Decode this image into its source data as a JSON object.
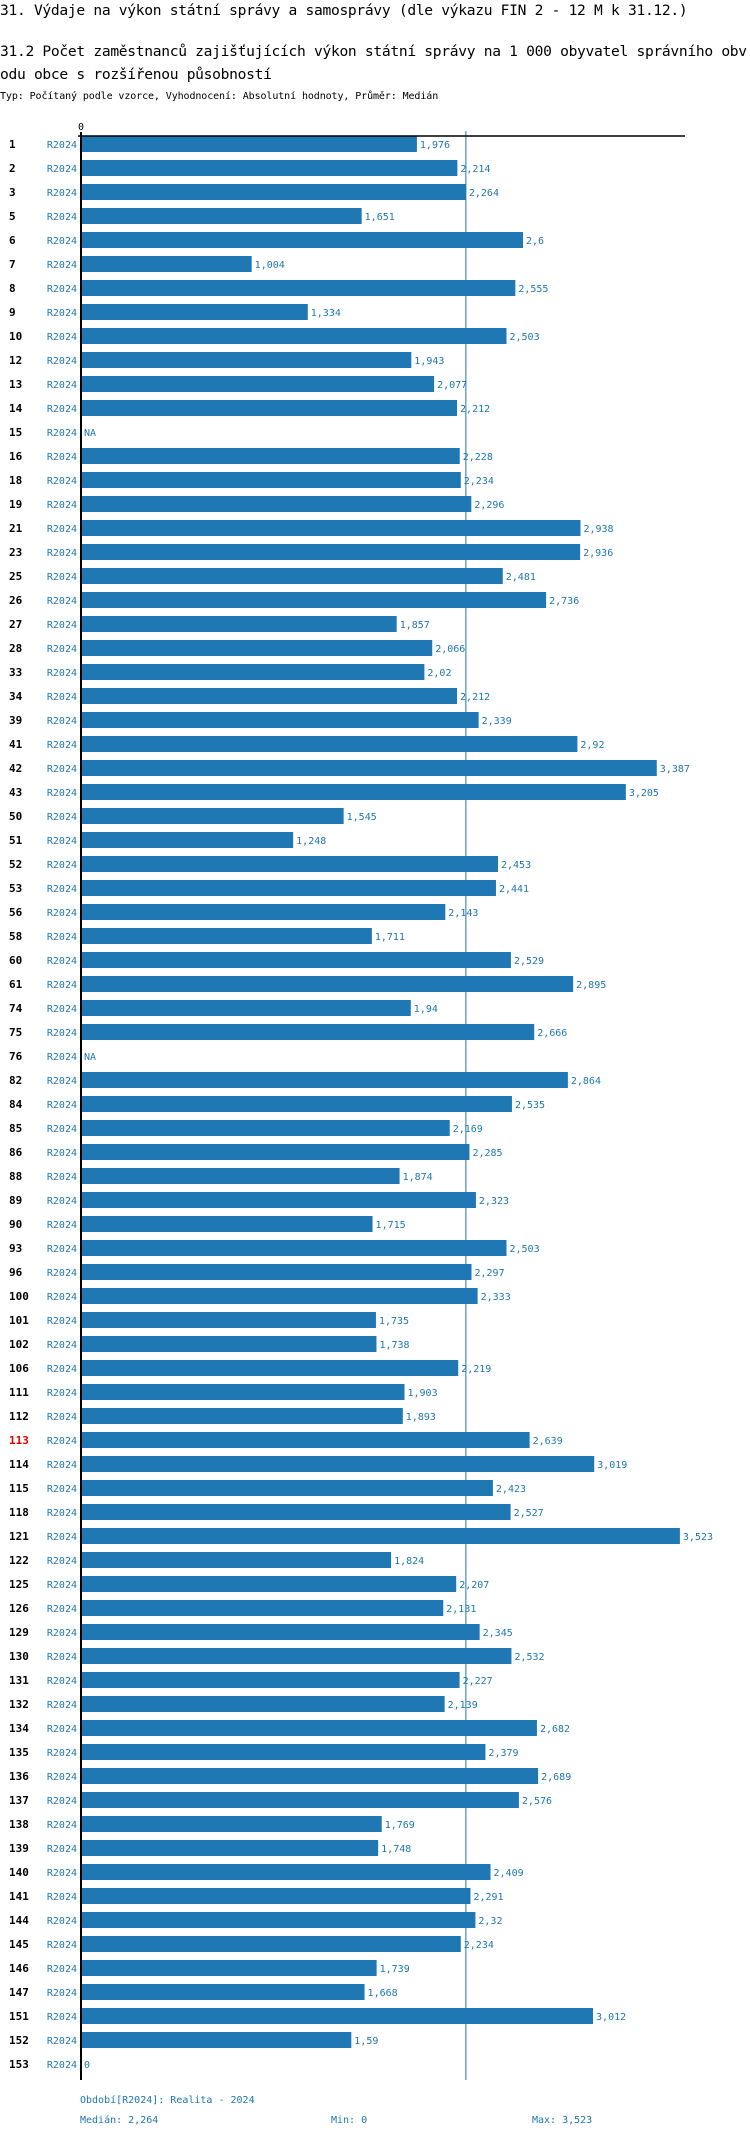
{
  "page": {
    "section_title": "31. Výdaje na výkon státní správy a samosprávy (dle výkazu FIN 2 - 12 M k 31.12.)",
    "heading": "31.2 Počet zaměstnanců zajišťujících výkon státní správy na 1 000 obyvatel správního obvodu obce s rozšířenou působností",
    "subtitle": "Typ: Počítaný podle vzorce, Vyhodnocení: Absolutní hodnoty, Průměr: Medián"
  },
  "colors": {
    "bar": "#1f77b4",
    "label": "#1f77b4",
    "axis": "#000000",
    "median_line": "#1f77b4",
    "highlight_row": "#e00000"
  },
  "footer": {
    "period": "Období[R2024]: Realita - 2024",
    "median": "Medián: 2,264",
    "min": "Min: 0",
    "max": "Max: 3,523"
  },
  "chart_data": {
    "type": "bar",
    "orientation": "horizontal",
    "title": "31.2 Počet zaměstnanců zajišťujících výkon státní správy na 1 000 obyvatel správního obvodu obce s rozšířenou působností",
    "xlabel": "",
    "ylabel": "",
    "axis_tick_labels": [
      "0"
    ],
    "xlim": [
      0,
      3.523
    ],
    "grid": false,
    "legend": "none",
    "period_label": "R2024",
    "highlighted_category": "113",
    "reference_lines": [
      {
        "name": "Medián",
        "value": 2.264
      }
    ],
    "categories": [
      "1",
      "2",
      "3",
      "5",
      "6",
      "7",
      "8",
      "9",
      "10",
      "12",
      "13",
      "14",
      "15",
      "16",
      "18",
      "19",
      "21",
      "23",
      "25",
      "26",
      "27",
      "28",
      "33",
      "34",
      "39",
      "41",
      "42",
      "43",
      "50",
      "51",
      "52",
      "53",
      "56",
      "58",
      "60",
      "61",
      "74",
      "75",
      "76",
      "82",
      "84",
      "85",
      "86",
      "88",
      "89",
      "90",
      "93",
      "96",
      "100",
      "101",
      "102",
      "106",
      "111",
      "112",
      "113",
      "114",
      "115",
      "118",
      "121",
      "122",
      "125",
      "126",
      "129",
      "130",
      "131",
      "132",
      "134",
      "135",
      "136",
      "137",
      "138",
      "139",
      "140",
      "141",
      "144",
      "145",
      "146",
      "147",
      "151",
      "152",
      "153"
    ],
    "values": [
      1.976,
      2.214,
      2.264,
      1.651,
      2.6,
      1.004,
      2.555,
      1.334,
      2.503,
      1.943,
      2.077,
      2.212,
      null,
      2.228,
      2.234,
      2.296,
      2.938,
      2.936,
      2.481,
      2.736,
      1.857,
      2.066,
      2.02,
      2.212,
      2.339,
      2.92,
      3.387,
      3.205,
      1.545,
      1.248,
      2.453,
      2.441,
      2.143,
      1.711,
      2.529,
      2.895,
      1.94,
      2.666,
      null,
      2.864,
      2.535,
      2.169,
      2.285,
      1.874,
      2.323,
      1.715,
      2.503,
      2.297,
      2.333,
      1.735,
      1.738,
      2.219,
      1.903,
      1.893,
      2.639,
      3.019,
      2.423,
      2.527,
      3.523,
      1.824,
      2.207,
      2.131,
      2.345,
      2.532,
      2.227,
      2.139,
      2.682,
      2.379,
      2.689,
      2.576,
      1.769,
      1.748,
      2.409,
      2.291,
      2.32,
      2.234,
      1.739,
      1.668,
      3.012,
      1.59,
      0
    ],
    "value_labels": [
      "1,976",
      "2,214",
      "2,264",
      "1,651",
      "2,6",
      "1,004",
      "2,555",
      "1,334",
      "2,503",
      "1,943",
      "2,077",
      "2,212",
      "NA",
      "2,228",
      "2,234",
      "2,296",
      "2,938",
      "2,936",
      "2,481",
      "2,736",
      "1,857",
      "2,066",
      "2,02",
      "2,212",
      "2,339",
      "2,92",
      "3,387",
      "3,205",
      "1,545",
      "1,248",
      "2,453",
      "2,441",
      "2,143",
      "1,711",
      "2,529",
      "2,895",
      "1,94",
      "2,666",
      "NA",
      "2,864",
      "2,535",
      "2,169",
      "2,285",
      "1,874",
      "2,323",
      "1,715",
      "2,503",
      "2,297",
      "2,333",
      "1,735",
      "1,738",
      "2,219",
      "1,903",
      "1,893",
      "2,639",
      "3,019",
      "2,423",
      "2,527",
      "3,523",
      "1,824",
      "2,207",
      "2,131",
      "2,345",
      "2,532",
      "2,227",
      "2,139",
      "2,682",
      "2,379",
      "2,689",
      "2,576",
      "1,769",
      "1,748",
      "2,409",
      "2,291",
      "2,32",
      "2,234",
      "1,739",
      "1,668",
      "3,012",
      "1,59",
      "0"
    ]
  }
}
